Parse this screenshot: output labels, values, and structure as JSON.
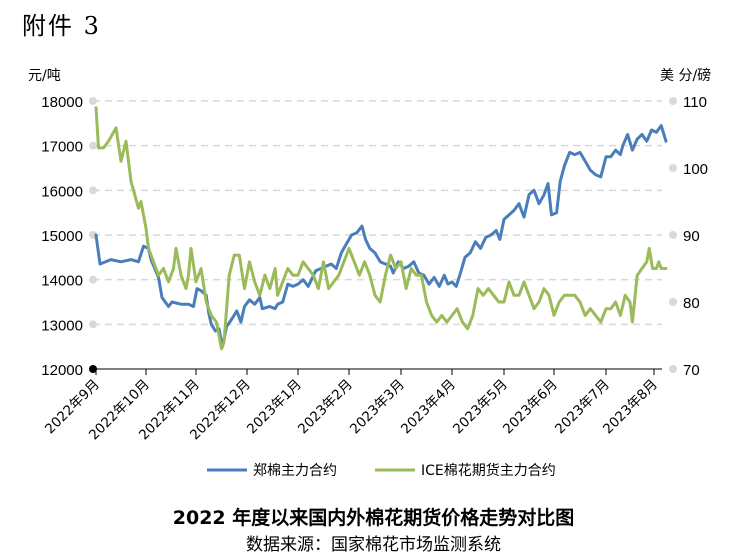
{
  "page_label": "附件 3",
  "title": "2022 年度以来国内外棉花期货价格走势对比图",
  "source": "数据来源：国家棉花市场监测系统",
  "chart_data": {
    "type": "line",
    "left_axis": {
      "unit": "元/吨",
      "ticks": [
        12000,
        13000,
        14000,
        15000,
        16000,
        17000,
        18000
      ],
      "range": [
        12000,
        18000
      ]
    },
    "right_axis": {
      "unit": "美 分/磅",
      "ticks": [
        70,
        80,
        90,
        100,
        110
      ],
      "range": [
        70,
        110
      ]
    },
    "x_labels": [
      "2022年9月",
      "2022年10月",
      "2022年11月",
      "2022年12月",
      "2023年1月",
      "2023年2月",
      "2023年3月",
      "2023年4月",
      "2023年5月",
      "2023年6月",
      "2023年7月",
      "2023年8月"
    ],
    "grid": "horizontal dashed",
    "legend_position": "bottom",
    "series": [
      {
        "name": "郑棉主力合约",
        "axis": "left",
        "color": "#4a7ebb",
        "points": [
          [
            0.0,
            15000
          ],
          [
            0.08,
            14350
          ],
          [
            0.3,
            14450
          ],
          [
            0.5,
            14400
          ],
          [
            0.7,
            14450
          ],
          [
            0.85,
            14400
          ],
          [
            0.95,
            14750
          ],
          [
            1.05,
            14700
          ],
          [
            1.1,
            14450
          ],
          [
            1.25,
            14050
          ],
          [
            1.32,
            13600
          ],
          [
            1.45,
            13400
          ],
          [
            1.52,
            13500
          ],
          [
            1.7,
            13450
          ],
          [
            1.85,
            13450
          ],
          [
            1.95,
            13400
          ],
          [
            2.02,
            13800
          ],
          [
            2.1,
            13750
          ],
          [
            2.2,
            13650
          ],
          [
            2.25,
            13250
          ],
          [
            2.3,
            13000
          ],
          [
            2.38,
            12850
          ],
          [
            2.45,
            12900
          ],
          [
            2.52,
            12500
          ],
          [
            2.6,
            12950
          ],
          [
            2.72,
            13150
          ],
          [
            2.8,
            13300
          ],
          [
            2.88,
            13050
          ],
          [
            2.95,
            13400
          ],
          [
            3.05,
            13550
          ],
          [
            3.15,
            13450
          ],
          [
            3.25,
            13600
          ],
          [
            3.3,
            13350
          ],
          [
            3.45,
            13400
          ],
          [
            3.55,
            13350
          ],
          [
            3.6,
            13450
          ],
          [
            3.7,
            13500
          ],
          [
            3.8,
            13900
          ],
          [
            3.9,
            13850
          ],
          [
            4.0,
            13900
          ],
          [
            4.1,
            14000
          ],
          [
            4.2,
            13850
          ],
          [
            4.35,
            14200
          ],
          [
            4.45,
            14250
          ],
          [
            4.55,
            14300
          ],
          [
            4.65,
            14350
          ],
          [
            4.75,
            14250
          ],
          [
            4.85,
            14600
          ],
          [
            4.95,
            14800
          ],
          [
            5.05,
            15000
          ],
          [
            5.15,
            15050
          ],
          [
            5.25,
            15200
          ],
          [
            5.32,
            14900
          ],
          [
            5.4,
            14700
          ],
          [
            5.5,
            14600
          ],
          [
            5.6,
            14400
          ],
          [
            5.7,
            14350
          ],
          [
            5.8,
            14300
          ],
          [
            5.85,
            14150
          ],
          [
            5.95,
            14400
          ],
          [
            6.05,
            14250
          ],
          [
            6.15,
            14300
          ],
          [
            6.25,
            14400
          ],
          [
            6.35,
            14150
          ],
          [
            6.45,
            14100
          ],
          [
            6.55,
            13900
          ],
          [
            6.65,
            14050
          ],
          [
            6.75,
            13850
          ],
          [
            6.85,
            14100
          ],
          [
            6.92,
            13900
          ],
          [
            7.0,
            13950
          ],
          [
            7.08,
            13850
          ],
          [
            7.15,
            14100
          ],
          [
            7.25,
            14500
          ],
          [
            7.35,
            14600
          ],
          [
            7.45,
            14850
          ],
          [
            7.55,
            14700
          ],
          [
            7.65,
            14950
          ],
          [
            7.75,
            15000
          ],
          [
            7.85,
            15100
          ],
          [
            7.92,
            14900
          ],
          [
            8.0,
            15350
          ],
          [
            8.1,
            15450
          ],
          [
            8.2,
            15550
          ],
          [
            8.3,
            15700
          ],
          [
            8.4,
            15400
          ],
          [
            8.5,
            15900
          ],
          [
            8.6,
            16000
          ],
          [
            8.7,
            15700
          ],
          [
            8.8,
            15900
          ],
          [
            8.88,
            16150
          ],
          [
            8.95,
            15450
          ],
          [
            9.05,
            15500
          ],
          [
            9.12,
            16200
          ],
          [
            9.2,
            16550
          ],
          [
            9.3,
            16850
          ],
          [
            9.4,
            16800
          ],
          [
            9.5,
            16850
          ],
          [
            9.6,
            16650
          ],
          [
            9.7,
            16450
          ],
          [
            9.8,
            16350
          ],
          [
            9.9,
            16300
          ],
          [
            10.0,
            16750
          ],
          [
            10.1,
            16750
          ],
          [
            10.2,
            16900
          ],
          [
            10.3,
            16800
          ],
          [
            10.35,
            17000
          ],
          [
            10.45,
            17250
          ],
          [
            10.55,
            16900
          ],
          [
            10.65,
            17150
          ],
          [
            10.75,
            17250
          ],
          [
            10.85,
            17100
          ],
          [
            10.95,
            17350
          ],
          [
            11.05,
            17300
          ],
          [
            11.15,
            17450
          ],
          [
            11.25,
            17100
          ]
        ]
      },
      {
        "name": "ICE棉花期货主力合约",
        "axis": "right",
        "color": "#9bbb59",
        "points": [
          [
            0.0,
            109
          ],
          [
            0.05,
            103
          ],
          [
            0.15,
            103
          ],
          [
            0.25,
            104
          ],
          [
            0.4,
            106
          ],
          [
            0.5,
            101
          ],
          [
            0.6,
            104
          ],
          [
            0.7,
            98
          ],
          [
            0.85,
            94
          ],
          [
            0.9,
            95
          ],
          [
            1.0,
            91
          ],
          [
            1.05,
            88
          ],
          [
            1.15,
            86
          ],
          [
            1.25,
            84
          ],
          [
            1.35,
            85
          ],
          [
            1.45,
            83
          ],
          [
            1.55,
            85
          ],
          [
            1.6,
            88
          ],
          [
            1.7,
            84
          ],
          [
            1.8,
            82
          ],
          [
            1.85,
            84
          ],
          [
            1.9,
            88
          ],
          [
            2.0,
            83
          ],
          [
            2.1,
            85
          ],
          [
            2.2,
            80
          ],
          [
            2.3,
            78
          ],
          [
            2.4,
            77
          ],
          [
            2.45,
            75
          ],
          [
            2.5,
            73
          ],
          [
            2.55,
            74
          ],
          [
            2.65,
            84
          ],
          [
            2.75,
            87
          ],
          [
            2.85,
            87
          ],
          [
            2.95,
            82
          ],
          [
            3.05,
            86
          ],
          [
            3.15,
            83
          ],
          [
            3.25,
            81
          ],
          [
            3.35,
            84
          ],
          [
            3.45,
            82
          ],
          [
            3.55,
            85
          ],
          [
            3.6,
            81
          ],
          [
            3.7,
            83
          ],
          [
            3.8,
            85
          ],
          [
            3.9,
            84
          ],
          [
            4.0,
            84
          ],
          [
            4.1,
            86
          ],
          [
            4.2,
            85
          ],
          [
            4.3,
            84
          ],
          [
            4.4,
            82
          ],
          [
            4.5,
            86
          ],
          [
            4.6,
            82
          ],
          [
            4.7,
            83
          ],
          [
            4.8,
            84
          ],
          [
            4.9,
            86
          ],
          [
            5.0,
            88
          ],
          [
            5.1,
            86
          ],
          [
            5.2,
            84
          ],
          [
            5.3,
            86
          ],
          [
            5.4,
            84
          ],
          [
            5.5,
            81
          ],
          [
            5.6,
            80
          ],
          [
            5.7,
            84
          ],
          [
            5.8,
            87
          ],
          [
            5.9,
            85
          ],
          [
            6.0,
            86
          ],
          [
            6.1,
            82
          ],
          [
            6.2,
            85
          ],
          [
            6.3,
            84
          ],
          [
            6.4,
            84
          ],
          [
            6.5,
            80
          ],
          [
            6.6,
            78
          ],
          [
            6.7,
            77
          ],
          [
            6.8,
            78
          ],
          [
            6.9,
            77
          ],
          [
            7.0,
            78
          ],
          [
            7.1,
            79
          ],
          [
            7.2,
            77
          ],
          [
            7.3,
            76
          ],
          [
            7.4,
            78
          ],
          [
            7.5,
            82
          ],
          [
            7.6,
            81
          ],
          [
            7.7,
            82
          ],
          [
            7.8,
            81
          ],
          [
            7.9,
            80
          ],
          [
            8.0,
            80
          ],
          [
            8.1,
            83
          ],
          [
            8.2,
            81
          ],
          [
            8.3,
            81
          ],
          [
            8.4,
            83
          ],
          [
            8.5,
            81
          ],
          [
            8.6,
            79
          ],
          [
            8.7,
            80
          ],
          [
            8.8,
            82
          ],
          [
            8.9,
            81
          ],
          [
            9.0,
            78
          ],
          [
            9.1,
            80
          ],
          [
            9.2,
            81
          ],
          [
            9.3,
            81
          ],
          [
            9.4,
            81
          ],
          [
            9.5,
            80
          ],
          [
            9.6,
            78
          ],
          [
            9.7,
            79
          ],
          [
            9.8,
            78
          ],
          [
            9.9,
            77
          ],
          [
            10.0,
            79
          ],
          [
            10.1,
            79
          ],
          [
            10.2,
            80
          ],
          [
            10.3,
            78
          ],
          [
            10.4,
            81
          ],
          [
            10.5,
            80
          ],
          [
            10.55,
            77
          ],
          [
            10.65,
            84
          ],
          [
            10.75,
            85
          ],
          [
            10.85,
            86
          ],
          [
            10.9,
            88
          ],
          [
            10.97,
            85
          ],
          [
            11.05,
            85
          ],
          [
            11.1,
            86
          ],
          [
            11.15,
            85
          ],
          [
            11.25,
            85
          ]
        ]
      }
    ]
  }
}
